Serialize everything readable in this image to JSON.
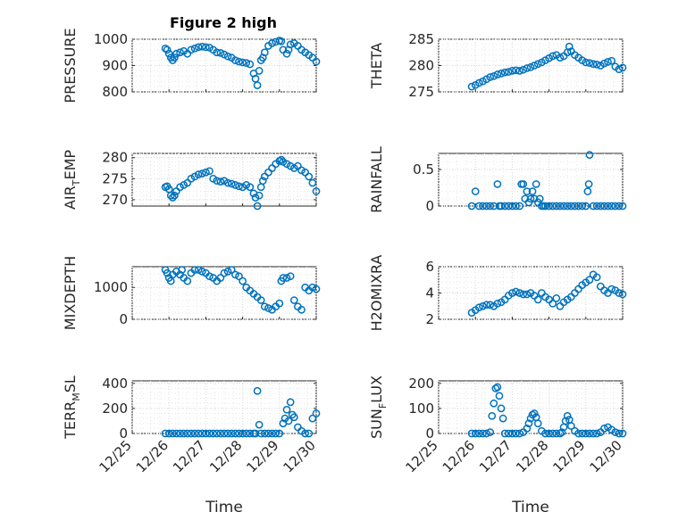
{
  "figure": {
    "title": "Figure 2 high",
    "xlabel": "Time",
    "x_tick_labels": [
      "12/25",
      "12/26",
      "12/27",
      "12/28",
      "12/29",
      "12/30"
    ],
    "marker_color": "#0072BD",
    "background": "#ffffff"
  },
  "chart_data": [
    {
      "id": "pressure",
      "type": "scatter",
      "title": "Figure 2 high",
      "ylabel": "PRESSURE",
      "ylabel_main": "PRESSURE",
      "ylabel_sub": "",
      "ylabel_tail": "",
      "xlim": [
        0,
        5
      ],
      "ylim": [
        800,
        1000
      ],
      "yticks": [
        800,
        900,
        1000
      ],
      "ytick_labels": [
        "800",
        "900",
        "1000"
      ],
      "grid": true,
      "show_xticks": false,
      "x": [
        0.9,
        0.95,
        1.0,
        1.05,
        1.1,
        1.15,
        1.2,
        1.3,
        1.4,
        1.5,
        1.6,
        1.7,
        1.8,
        1.9,
        2.0,
        2.1,
        2.2,
        2.3,
        2.4,
        2.5,
        2.6,
        2.7,
        2.8,
        2.9,
        3.0,
        3.1,
        3.2,
        3.3,
        3.35,
        3.4,
        3.45,
        3.5,
        3.55,
        3.6,
        3.7,
        3.8,
        3.9,
        4.0,
        4.05,
        4.1,
        4.2,
        4.25,
        4.3,
        4.4,
        4.5,
        4.6,
        4.7,
        4.8,
        4.9,
        5.0
      ],
      "y": [
        965,
        960,
        945,
        930,
        920,
        930,
        945,
        950,
        955,
        945,
        960,
        965,
        970,
        972,
        970,
        968,
        960,
        950,
        948,
        942,
        935,
        930,
        920,
        915,
        912,
        910,
        905,
        870,
        850,
        825,
        880,
        920,
        930,
        950,
        975,
        985,
        990,
        995,
        992,
        960,
        945,
        960,
        980,
        985,
        975,
        960,
        950,
        940,
        930,
        915
      ]
    },
    {
      "id": "theta",
      "type": "scatter",
      "title": "",
      "ylabel": "THETA",
      "ylabel_main": "THETA",
      "ylabel_sub": "",
      "ylabel_tail": "",
      "xlim": [
        0,
        5
      ],
      "ylim": [
        275,
        285
      ],
      "yticks": [
        275,
        280,
        285
      ],
      "ytick_labels": [
        "275",
        "280",
        "285"
      ],
      "grid": true,
      "show_xticks": false,
      "x": [
        0.9,
        1.0,
        1.1,
        1.2,
        1.3,
        1.4,
        1.5,
        1.6,
        1.7,
        1.8,
        1.9,
        2.0,
        2.1,
        2.2,
        2.3,
        2.4,
        2.5,
        2.6,
        2.7,
        2.8,
        2.9,
        3.0,
        3.1,
        3.2,
        3.3,
        3.4,
        3.5,
        3.55,
        3.6,
        3.7,
        3.8,
        3.9,
        4.0,
        4.1,
        4.2,
        4.3,
        4.4,
        4.5,
        4.6,
        4.7,
        4.8,
        4.9,
        5.0
      ],
      "y": [
        276.0,
        276.3,
        276.7,
        277.0,
        277.4,
        277.8,
        278.0,
        278.3,
        278.5,
        278.7,
        278.8,
        279.0,
        279.1,
        279.0,
        279.2,
        279.5,
        279.7,
        280.0,
        280.3,
        280.6,
        281.0,
        281.4,
        281.8,
        282.0,
        281.5,
        281.8,
        282.5,
        283.6,
        282.7,
        282.0,
        281.5,
        281.0,
        280.6,
        280.5,
        280.3,
        280.2,
        280.0,
        280.4,
        280.7,
        280.9,
        279.8,
        279.3,
        279.6
      ]
    },
    {
      "id": "air_temp",
      "type": "scatter",
      "title": "",
      "ylabel": "AIR_TEMP",
      "ylabel_main": "AIR",
      "ylabel_sub": "T",
      "ylabel_tail": "EMP",
      "xlim": [
        0,
        5
      ],
      "ylim": [
        268.5,
        281
      ],
      "yticks": [
        270,
        275,
        280
      ],
      "ytick_labels": [
        "270",
        "275",
        "280"
      ],
      "grid": true,
      "show_xticks": false,
      "x": [
        0.9,
        0.95,
        1.0,
        1.05,
        1.1,
        1.15,
        1.2,
        1.3,
        1.4,
        1.5,
        1.6,
        1.7,
        1.8,
        1.9,
        2.0,
        2.1,
        2.2,
        2.3,
        2.4,
        2.5,
        2.6,
        2.7,
        2.8,
        2.9,
        3.0,
        3.1,
        3.2,
        3.3,
        3.35,
        3.4,
        3.45,
        3.5,
        3.55,
        3.6,
        3.7,
        3.8,
        3.9,
        4.0,
        4.05,
        4.1,
        4.2,
        4.3,
        4.4,
        4.5,
        4.6,
        4.7,
        4.8,
        4.9,
        5.0
      ],
      "y": [
        273.0,
        273.2,
        272.5,
        271.0,
        270.5,
        271.0,
        272.0,
        273.0,
        273.5,
        274.0,
        275.0,
        275.5,
        276.0,
        276.2,
        276.5,
        276.8,
        275.0,
        274.5,
        274.3,
        274.5,
        274.0,
        273.8,
        273.5,
        273.2,
        273.0,
        273.5,
        273.0,
        271.5,
        270.5,
        268.5,
        271.0,
        273.0,
        274.5,
        275.5,
        276.5,
        277.5,
        278.5,
        279.2,
        279.5,
        279.0,
        278.5,
        278.0,
        277.5,
        278.0,
        277.0,
        276.5,
        275.5,
        274.0,
        272.0
      ]
    },
    {
      "id": "rainfall",
      "type": "scatter",
      "title": "",
      "ylabel": "RAINFALL",
      "ylabel_main": "RAINFALL",
      "ylabel_sub": "",
      "ylabel_tail": "",
      "xlim": [
        0,
        5
      ],
      "ylim": [
        0,
        0.72
      ],
      "yticks": [
        0,
        0.5
      ],
      "ytick_labels": [
        "0",
        "0.5"
      ],
      "grid": true,
      "show_xticks": false,
      "x": [
        0.9,
        1.0,
        1.1,
        1.2,
        1.3,
        1.4,
        1.5,
        1.6,
        1.65,
        1.7,
        1.8,
        1.9,
        2.0,
        2.1,
        2.2,
        2.25,
        2.3,
        2.35,
        2.4,
        2.45,
        2.5,
        2.55,
        2.6,
        2.65,
        2.7,
        2.75,
        2.8,
        2.85,
        2.9,
        3.0,
        3.1,
        3.2,
        3.3,
        3.4,
        3.5,
        3.6,
        3.7,
        3.8,
        3.9,
        4.0,
        4.05,
        4.08,
        4.1,
        4.2,
        4.3,
        4.4,
        4.5,
        4.6,
        4.7,
        4.8,
        4.9,
        5.0
      ],
      "y": [
        0,
        0.2,
        0,
        0,
        0,
        0,
        0,
        0.3,
        0,
        0,
        0,
        0,
        0,
        0,
        0,
        0.3,
        0.3,
        0.1,
        0.2,
        0.05,
        0.1,
        0.2,
        0.1,
        0.3,
        0.05,
        0.1,
        0,
        0,
        0,
        0,
        0,
        0,
        0,
        0,
        0,
        0,
        0,
        0,
        0,
        0,
        0.2,
        0.3,
        0.7,
        0,
        0,
        0,
        0,
        0,
        0,
        0,
        0,
        0
      ]
    },
    {
      "id": "mixdepth",
      "type": "scatter",
      "title": "",
      "ylabel": "MIXDEPTH",
      "ylabel_main": "MIXDEPTH",
      "ylabel_sub": "",
      "ylabel_tail": "",
      "xlim": [
        0,
        5
      ],
      "ylim": [
        0,
        1650
      ],
      "yticks": [
        0,
        1000
      ],
      "ytick_labels": [
        "0",
        "1000"
      ],
      "grid": true,
      "show_xticks": false,
      "x": [
        0.9,
        0.95,
        1.0,
        1.05,
        1.1,
        1.2,
        1.3,
        1.35,
        1.4,
        1.5,
        1.6,
        1.7,
        1.8,
        1.9,
        2.0,
        2.1,
        2.2,
        2.3,
        2.4,
        2.5,
        2.6,
        2.7,
        2.8,
        2.9,
        3.0,
        3.1,
        3.2,
        3.3,
        3.4,
        3.5,
        3.6,
        3.7,
        3.8,
        3.9,
        4.0,
        4.05,
        4.1,
        4.2,
        4.3,
        4.4,
        4.5,
        4.6,
        4.7,
        4.8,
        4.9,
        5.0
      ],
      "y": [
        1550,
        1450,
        1300,
        1200,
        1400,
        1500,
        1400,
        1550,
        1300,
        1200,
        1450,
        1550,
        1550,
        1500,
        1450,
        1350,
        1300,
        1200,
        1300,
        1450,
        1500,
        1550,
        1400,
        1350,
        1200,
        1000,
        900,
        800,
        700,
        600,
        400,
        350,
        300,
        400,
        500,
        1200,
        1300,
        1300,
        1350,
        600,
        400,
        300,
        1000,
        900,
        1000,
        950
      ]
    },
    {
      "id": "h2omixra",
      "type": "scatter",
      "title": "",
      "ylabel": "H2OMIXRA",
      "ylabel_main": "H2OMIXRA",
      "ylabel_sub": "",
      "ylabel_tail": "",
      "xlim": [
        0,
        5
      ],
      "ylim": [
        2,
        6
      ],
      "yticks": [
        2,
        4,
        6
      ],
      "ytick_labels": [
        "2",
        "4",
        "6"
      ],
      "grid": true,
      "show_xticks": false,
      "x": [
        0.9,
        1.0,
        1.1,
        1.2,
        1.3,
        1.4,
        1.5,
        1.6,
        1.7,
        1.8,
        1.9,
        2.0,
        2.1,
        2.2,
        2.3,
        2.4,
        2.5,
        2.6,
        2.7,
        2.8,
        2.9,
        3.0,
        3.1,
        3.2,
        3.3,
        3.4,
        3.5,
        3.6,
        3.7,
        3.8,
        3.9,
        4.0,
        4.1,
        4.2,
        4.3,
        4.4,
        4.5,
        4.6,
        4.7,
        4.8,
        4.9,
        5.0
      ],
      "y": [
        2.5,
        2.7,
        2.9,
        3.0,
        3.1,
        3.1,
        3.0,
        3.2,
        3.3,
        3.5,
        3.8,
        4.0,
        4.1,
        4.0,
        3.9,
        3.9,
        4.0,
        3.8,
        3.5,
        4.0,
        3.7,
        3.5,
        3.2,
        3.6,
        3.0,
        3.3,
        3.5,
        3.7,
        4.0,
        4.3,
        4.6,
        4.8,
        5.0,
        5.4,
        5.2,
        4.5,
        4.2,
        4.0,
        4.3,
        4.2,
        4.0,
        3.9
      ]
    },
    {
      "id": "terr_msl",
      "type": "scatter",
      "title": "",
      "ylabel": "TERR_MSL",
      "ylabel_main": "TERR",
      "ylabel_sub": "M",
      "ylabel_tail": "SL",
      "xlim": [
        0,
        5
      ],
      "ylim": [
        0,
        420
      ],
      "yticks": [
        0,
        200,
        400
      ],
      "ytick_labels": [
        "0",
        "200",
        "400"
      ],
      "grid": true,
      "show_xticks": true,
      "x": [
        0.9,
        1.0,
        1.1,
        1.2,
        1.3,
        1.4,
        1.5,
        1.6,
        1.7,
        1.8,
        1.9,
        2.0,
        2.1,
        2.2,
        2.3,
        2.4,
        2.5,
        2.6,
        2.7,
        2.8,
        2.9,
        3.0,
        3.1,
        3.2,
        3.3,
        3.35,
        3.4,
        3.45,
        3.5,
        3.6,
        3.7,
        3.8,
        3.9,
        4.0,
        4.1,
        4.15,
        4.2,
        4.25,
        4.3,
        4.35,
        4.4,
        4.5,
        4.6,
        4.7,
        4.8,
        4.9,
        5.0
      ],
      "y": [
        0,
        0,
        0,
        0,
        0,
        0,
        0,
        0,
        0,
        0,
        0,
        0,
        0,
        0,
        0,
        0,
        0,
        0,
        0,
        0,
        0,
        0,
        0,
        0,
        0,
        0,
        340,
        70,
        0,
        0,
        0,
        0,
        0,
        0,
        80,
        120,
        190,
        100,
        250,
        150,
        130,
        50,
        20,
        0,
        0,
        120,
        160
      ]
    },
    {
      "id": "sun_flux",
      "type": "scatter",
      "title": "",
      "ylabel": "SUN_FLUX",
      "ylabel_main": "SUN",
      "ylabel_sub": "F",
      "ylabel_tail": "LUX",
      "xlim": [
        0,
        5
      ],
      "ylim": [
        0,
        210
      ],
      "yticks": [
        0,
        100,
        200
      ],
      "ytick_labels": [
        "0",
        "100",
        "200"
      ],
      "grid": true,
      "show_xticks": true,
      "x": [
        0.9,
        1.0,
        1.1,
        1.2,
        1.3,
        1.4,
        1.45,
        1.5,
        1.55,
        1.6,
        1.65,
        1.7,
        1.75,
        1.8,
        1.9,
        2.0,
        2.1,
        2.2,
        2.3,
        2.4,
        2.45,
        2.5,
        2.55,
        2.6,
        2.65,
        2.7,
        2.8,
        2.9,
        3.0,
        3.1,
        3.2,
        3.3,
        3.35,
        3.4,
        3.45,
        3.5,
        3.55,
        3.6,
        3.7,
        3.8,
        3.9,
        4.0,
        4.1,
        4.2,
        4.3,
        4.4,
        4.5,
        4.6,
        4.7,
        4.8,
        4.9,
        5.0
      ],
      "y": [
        0,
        0,
        0,
        0,
        0,
        5,
        70,
        120,
        180,
        185,
        150,
        100,
        60,
        0,
        0,
        0,
        0,
        0,
        5,
        20,
        40,
        60,
        75,
        80,
        65,
        40,
        10,
        0,
        0,
        0,
        0,
        0,
        5,
        25,
        50,
        70,
        55,
        30,
        10,
        0,
        0,
        0,
        0,
        0,
        0,
        5,
        20,
        25,
        15,
        5,
        0,
        0
      ]
    }
  ]
}
